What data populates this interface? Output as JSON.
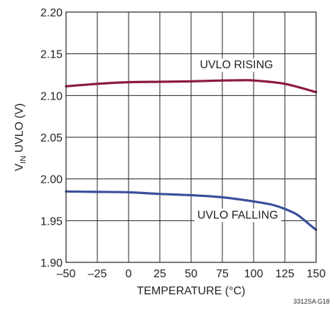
{
  "chart_data": {
    "type": "line",
    "xlabel": "TEMPERATURE (°C)",
    "ylabel": {
      "main": "V",
      "sub": "IN",
      "rest": " UVLO (V)"
    },
    "xlim": [
      -50,
      150
    ],
    "ylim": [
      1.9,
      2.2
    ],
    "xticks": [
      -50,
      -25,
      0,
      25,
      50,
      75,
      100,
      125,
      150
    ],
    "xtick_labels": [
      "–50",
      "–25",
      "0",
      "25",
      "50",
      "75",
      "100",
      "125",
      "150"
    ],
    "yticks": [
      1.9,
      1.95,
      2.0,
      2.05,
      2.1,
      2.15,
      2.2
    ],
    "ytick_labels": [
      "1.90",
      "1.95",
      "2.00",
      "2.05",
      "2.10",
      "2.15",
      "2.20"
    ],
    "grid": true,
    "series": [
      {
        "name": "UVLO RISING",
        "color": "#8b1a3a",
        "x": [
          -50,
          -25,
          0,
          25,
          50,
          75,
          90,
          100,
          125,
          150
        ],
        "y": [
          2.111,
          2.114,
          2.116,
          2.1165,
          2.117,
          2.118,
          2.1183,
          2.118,
          2.114,
          2.104
        ]
      },
      {
        "name": "UVLO FALLING",
        "color": "#3a4f9c",
        "x": [
          -50,
          -25,
          0,
          25,
          50,
          75,
          100,
          115,
          125,
          135,
          145,
          150
        ],
        "y": [
          1.985,
          1.9845,
          1.984,
          1.982,
          1.9805,
          1.978,
          1.973,
          1.969,
          1.964,
          1.957,
          1.945,
          1.939
        ]
      }
    ],
    "annotation": "3312SA G18"
  }
}
